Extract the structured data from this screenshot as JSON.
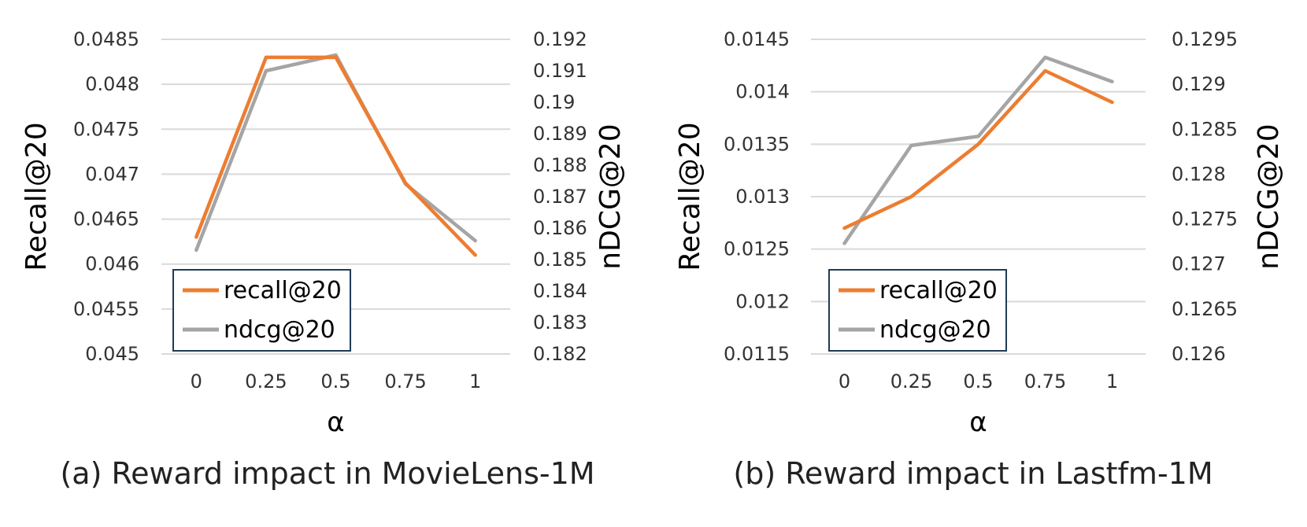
{
  "charts": [
    {
      "type": "line",
      "caption": "(a) Reward impact in MovieLens-1M",
      "xlabel": "α",
      "ylabel_left": "Recall@20",
      "ylabel_right": "nDCG@20",
      "categories": [
        "0",
        "0.25",
        "0.5",
        "0.75",
        "1"
      ],
      "left_axis": {
        "min": 0.045,
        "max": 0.0485,
        "ticks": [
          "0.045",
          "0.0455",
          "0.046",
          "0.0465",
          "0.047",
          "0.0475",
          "0.048",
          "0.0485"
        ]
      },
      "right_axis": {
        "min": 0.182,
        "max": 0.192,
        "ticks": [
          "0.182",
          "0.183",
          "0.184",
          "0.185",
          "0.186",
          "0.187",
          "0.188",
          "0.189",
          "0.19",
          "0.191",
          "0.192"
        ]
      },
      "series": [
        {
          "name": "recall@20",
          "axis": "left",
          "color": "#ED7D31",
          "values": [
            0.0463,
            0.0483,
            0.0483,
            0.0469,
            0.0461
          ]
        },
        {
          "name": "ndcg@20",
          "axis": "right",
          "color": "#A5A5A5",
          "values": [
            0.1853,
            0.191,
            0.1915,
            0.1874,
            0.1856
          ]
        }
      ],
      "legend": [
        "recall@20",
        "ndcg@20"
      ]
    },
    {
      "type": "line",
      "caption": "(b) Reward impact in Lastfm-1M",
      "xlabel": "α",
      "ylabel_left": "Recall@20",
      "ylabel_right": "nDCG@20",
      "categories": [
        "0",
        "0.25",
        "0.5",
        "0.75",
        "1"
      ],
      "left_axis": {
        "min": 0.0115,
        "max": 0.0145,
        "ticks": [
          "0.0115",
          "0.012",
          "0.0125",
          "0.013",
          "0.0135",
          "0.014",
          "0.0145"
        ]
      },
      "right_axis": {
        "min": 0.126,
        "max": 0.1295,
        "ticks": [
          "0.126",
          "0.1265",
          "0.127",
          "0.1275",
          "0.128",
          "0.1285",
          "0.129",
          "0.1295"
        ]
      },
      "series": [
        {
          "name": "recall@20",
          "axis": "left",
          "color": "#ED7D31",
          "values": [
            0.0127,
            0.013,
            0.0135,
            0.0142,
            0.0139
          ]
        },
        {
          "name": "ndcg@20",
          "axis": "right",
          "color": "#A5A5A5",
          "values": [
            0.12723,
            0.12832,
            0.12842,
            0.1293,
            0.12903
          ]
        }
      ],
      "legend": [
        "recall@20",
        "ndcg@20"
      ]
    }
  ]
}
